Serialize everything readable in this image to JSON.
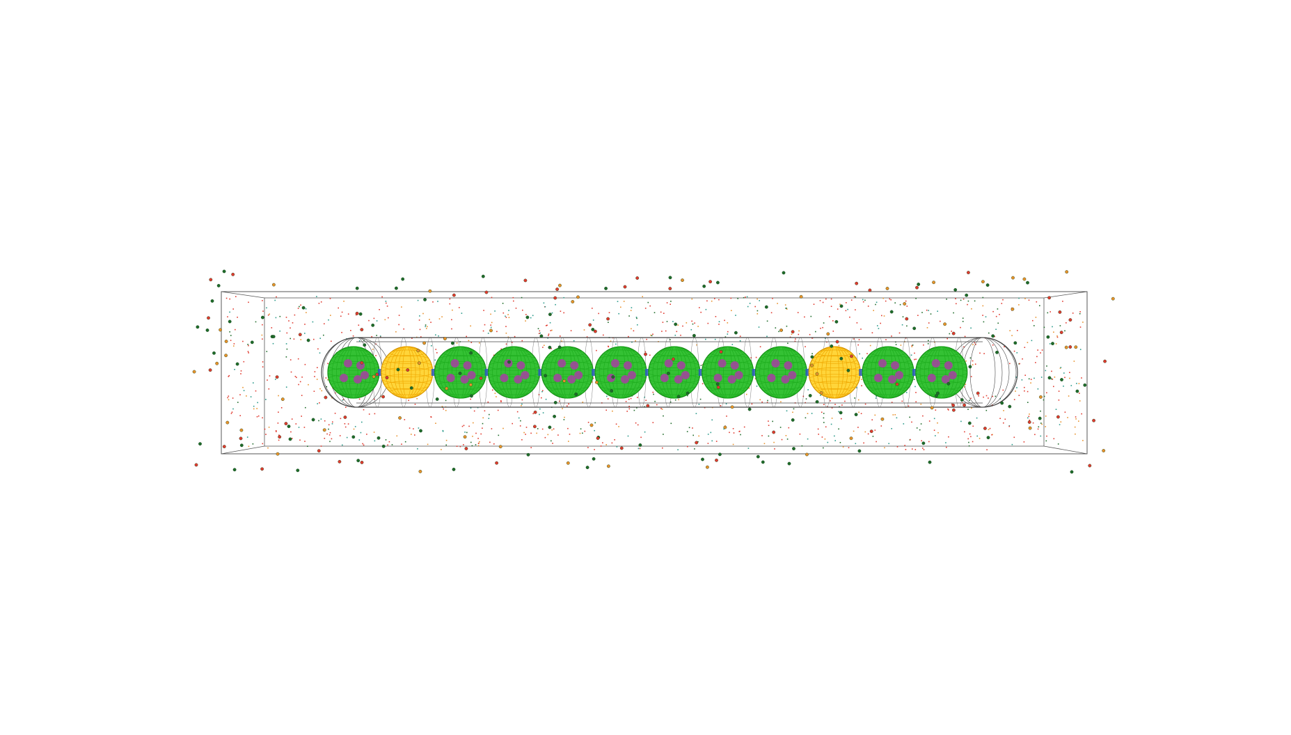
{
  "scene": {
    "background_color": "#ffffff",
    "container": {
      "kind": "wireframe-box-perspective",
      "stroke_color": "#555555"
    },
    "capsule": {
      "kind": "wireframe-capsule",
      "stroke_color": "#444444"
    },
    "spheres": [
      {
        "color": "green"
      },
      {
        "color": "yellow"
      },
      {
        "color": "green"
      },
      {
        "color": "green"
      },
      {
        "color": "green"
      },
      {
        "color": "green"
      },
      {
        "color": "green"
      },
      {
        "color": "green"
      },
      {
        "color": "green"
      },
      {
        "color": "yellow"
      },
      {
        "color": "green"
      },
      {
        "color": "green"
      }
    ],
    "sphere_colors": {
      "green": {
        "wire": "#1fae1f",
        "fill": "#34c134",
        "dark": "#138a13"
      },
      "yellow": {
        "wire": "#f0a800",
        "fill": "#ffd53a",
        "dark": "#d39200"
      }
    },
    "inner_blob_color": "#a0479b",
    "connector_color": "#2b59c3",
    "particle_colors": {
      "red": "#e03a2f",
      "dark_green": "#1f6b2a",
      "orange": "#e8912b",
      "teal": "#2a9a8a"
    }
  }
}
